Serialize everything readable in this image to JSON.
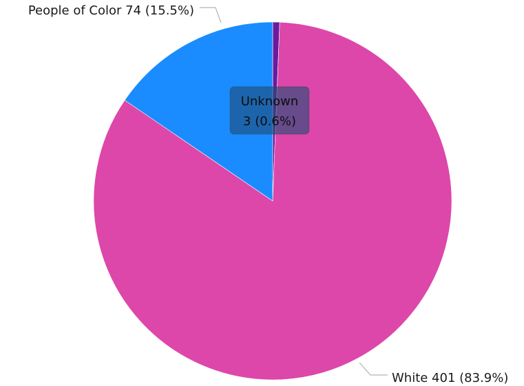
{
  "chart_data": {
    "type": "pie",
    "title": "",
    "categories": [
      "White",
      "People of Color",
      "Unknown"
    ],
    "values": [
      401,
      74,
      3
    ],
    "percentages": [
      83.9,
      15.5,
      0.6
    ],
    "colors": [
      "#dd47a9",
      "#1a8cff",
      "#6b1a9e"
    ],
    "labels": [
      {
        "category": "White",
        "text": "White 401 (83.9%)"
      },
      {
        "category": "People of Color",
        "text": "People of Color 74 (15.5%)"
      }
    ],
    "start_angle_deg": 0,
    "direction": "clockwise",
    "legend": "none"
  },
  "tooltip": {
    "category": "Unknown",
    "line1": "Unknown",
    "line2": "3 (0.6%)"
  }
}
